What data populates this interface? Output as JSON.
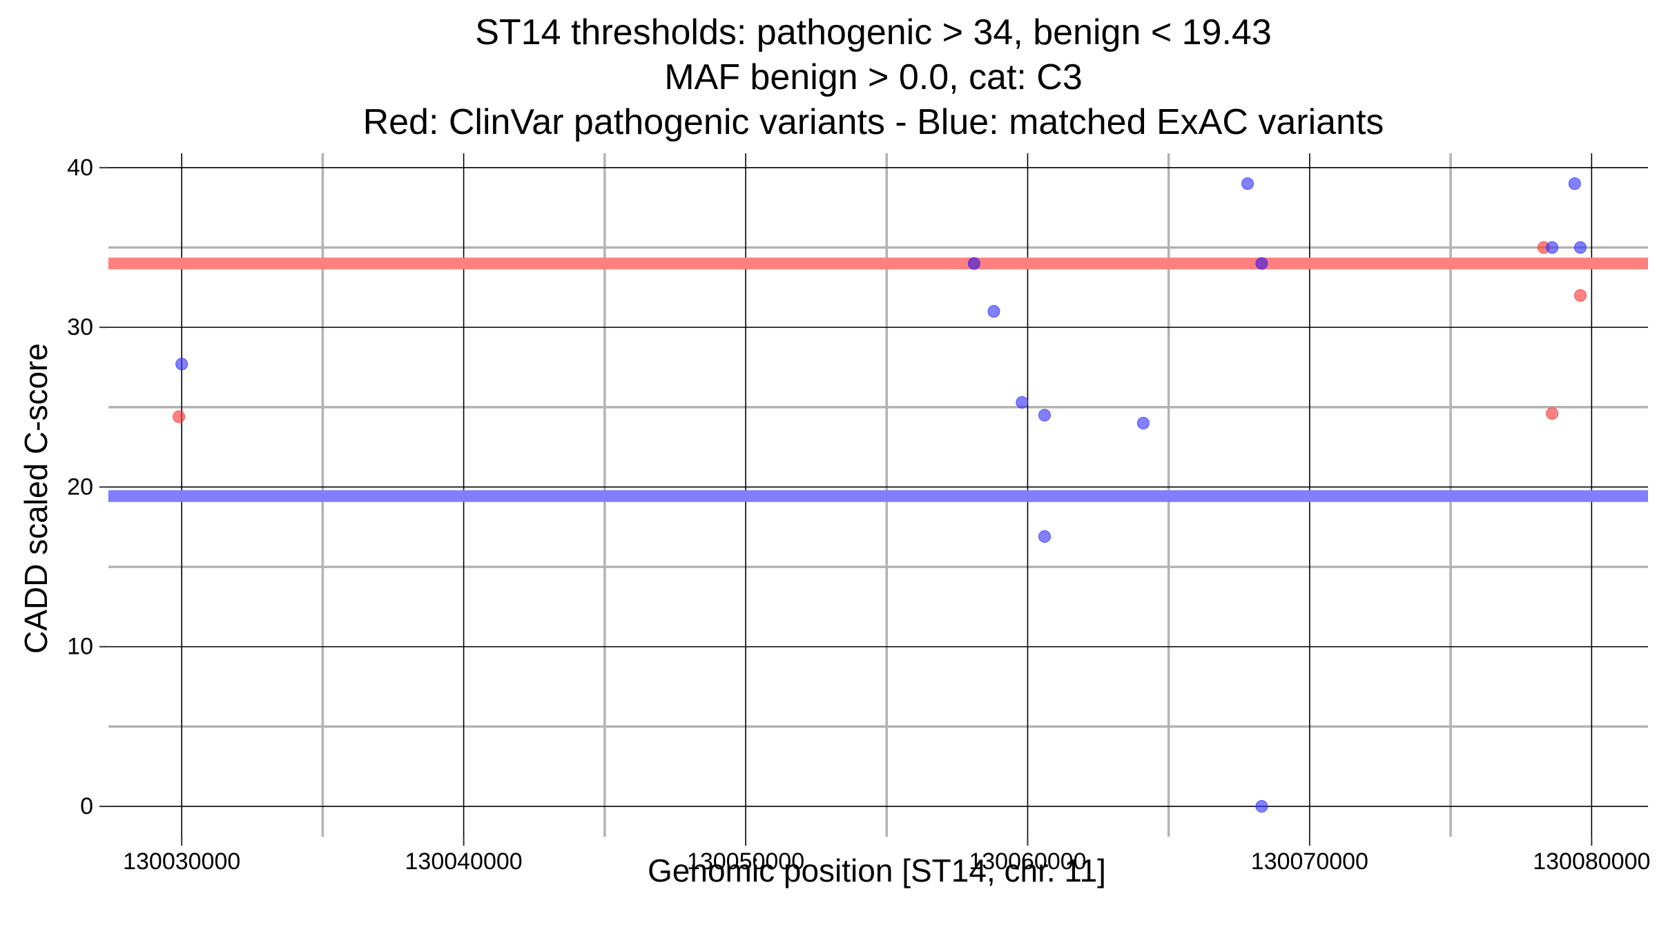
{
  "chart_data": {
    "type": "scatter",
    "title_lines": [
      "ST14 thresholds: pathogenic > 34, benign < 19.43",
      "MAF benign > 0.0, cat: C3",
      "Red: ClinVar pathogenic variants - Blue: matched ExAC variants"
    ],
    "xlabel": "Genomic position [ST14, chr. 11]",
    "ylabel": "CADD scaled C-score",
    "xlim": [
      130027400,
      130082000
    ],
    "ylim": [
      -1.9,
      40.9
    ],
    "x_ticks": [
      130030000,
      130040000,
      130050000,
      130060000,
      130070000,
      130080000
    ],
    "x_tick_labels": [
      "130030000",
      "130040000",
      "130050000",
      "130060000",
      "130070000",
      "130080000"
    ],
    "x_minor_ticks": [
      130035000,
      130045000,
      130055000,
      130065000,
      130075000
    ],
    "y_ticks": [
      0,
      10,
      20,
      30,
      40
    ],
    "y_tick_labels": [
      "0",
      "10",
      "20",
      "30",
      "40"
    ],
    "y_minor_ticks": [
      5,
      15,
      25,
      35
    ],
    "grid": true,
    "thresholds": [
      {
        "name": "pathogenic",
        "value": 34,
        "color": "#ff8080"
      },
      {
        "name": "benign",
        "value": 19.43,
        "color": "#7f7fff"
      }
    ],
    "series": [
      {
        "name": "ClinVar pathogenic variants",
        "color": "#ff3333",
        "points": [
          {
            "x": 130029900,
            "y": 24.4
          },
          {
            "x": 130058100,
            "y": 34.0
          },
          {
            "x": 130068300,
            "y": 34.0
          },
          {
            "x": 130078300,
            "y": 35.0
          },
          {
            "x": 130078600,
            "y": 24.6
          },
          {
            "x": 130079600,
            "y": 32.0
          }
        ]
      },
      {
        "name": "matched ExAC variants",
        "color": "#3333ff",
        "points": [
          {
            "x": 130030000,
            "y": 27.7
          },
          {
            "x": 130058100,
            "y": 34.0
          },
          {
            "x": 130058800,
            "y": 31.0
          },
          {
            "x": 130059800,
            "y": 25.3
          },
          {
            "x": 130060600,
            "y": 24.5
          },
          {
            "x": 130060600,
            "y": 16.9
          },
          {
            "x": 130064100,
            "y": 24.0
          },
          {
            "x": 130067800,
            "y": 39.0
          },
          {
            "x": 130068300,
            "y": 34.0
          },
          {
            "x": 130068300,
            "y": 0.0
          },
          {
            "x": 130078600,
            "y": 35.0
          },
          {
            "x": 130079400,
            "y": 39.0
          },
          {
            "x": 130079600,
            "y": 35.0
          }
        ]
      }
    ]
  }
}
